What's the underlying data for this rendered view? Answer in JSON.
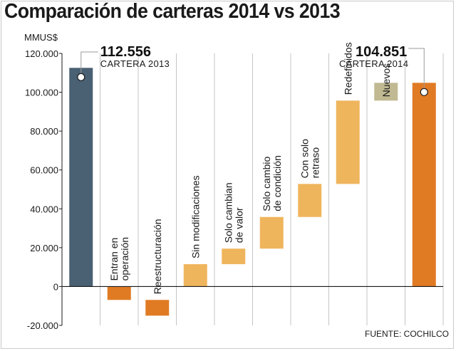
{
  "chart_data": {
    "type": "bar",
    "subtype": "waterfall",
    "title": "Comparación de carteras 2014 vs 2013",
    "ylabel": "MMUS$",
    "source": "FUENTE: COCHILCO",
    "ylim": [
      -20000,
      120000
    ],
    "yticks": [
      {
        "value": 120000,
        "label": "120.000"
      },
      {
        "value": 100000,
        "label": "100.000"
      },
      {
        "value": 80000,
        "label": "80.000"
      },
      {
        "value": 60000,
        "label": "60.000"
      },
      {
        "value": 40000,
        "label": "40.000"
      },
      {
        "value": 20000,
        "label": "20.000"
      },
      {
        "value": 0,
        "label": "0"
      },
      {
        "value": -20000,
        "label": "-20.000"
      }
    ],
    "bars": [
      {
        "name": "cartera-2013",
        "label": "",
        "start": 0,
        "end": 112556,
        "color": "#4a6073"
      },
      {
        "name": "entran-en-operacion",
        "label": "Entran en|operación",
        "start": 0,
        "end": -6900,
        "color": "#e07b24"
      },
      {
        "name": "reestructuracion",
        "label": "Reestructuración",
        "start": -6900,
        "end": -15000,
        "color": "#e07b24"
      },
      {
        "name": "sin-modificaciones",
        "label": "Sin modificaciones",
        "start": 0,
        "end": 11500,
        "color": "#efb55d"
      },
      {
        "name": "solo-cambian-de-valor",
        "label": "Solo cambian|de valor",
        "start": 11500,
        "end": 19500,
        "color": "#efb55d"
      },
      {
        "name": "solo-cambio-de-condicion",
        "label": "Solo cambio|de condición",
        "start": 19500,
        "end": 35800,
        "color": "#efb55d"
      },
      {
        "name": "con-solo-retraso",
        "label": "Con solo|retraso",
        "start": 35800,
        "end": 52800,
        "color": "#efb55d"
      },
      {
        "name": "redefinidos",
        "label": "Redefinidos",
        "start": 52800,
        "end": 95700,
        "color": "#efb55d"
      },
      {
        "name": "nuevos",
        "label": "Nuevos",
        "start": 95700,
        "end": 104851,
        "color": "#c0b991"
      },
      {
        "name": "cartera-2014",
        "label": "",
        "start": 0,
        "end": 104851,
        "color": "#e07b24"
      }
    ],
    "annotations": [
      {
        "name": "cartera-2013",
        "value_label": "112.556",
        "text": "CARTERA 2013",
        "value": 112556
      },
      {
        "name": "cartera-2014",
        "value_label": "104.851",
        "text": "CARTERA 2014",
        "value": 104851
      }
    ]
  }
}
